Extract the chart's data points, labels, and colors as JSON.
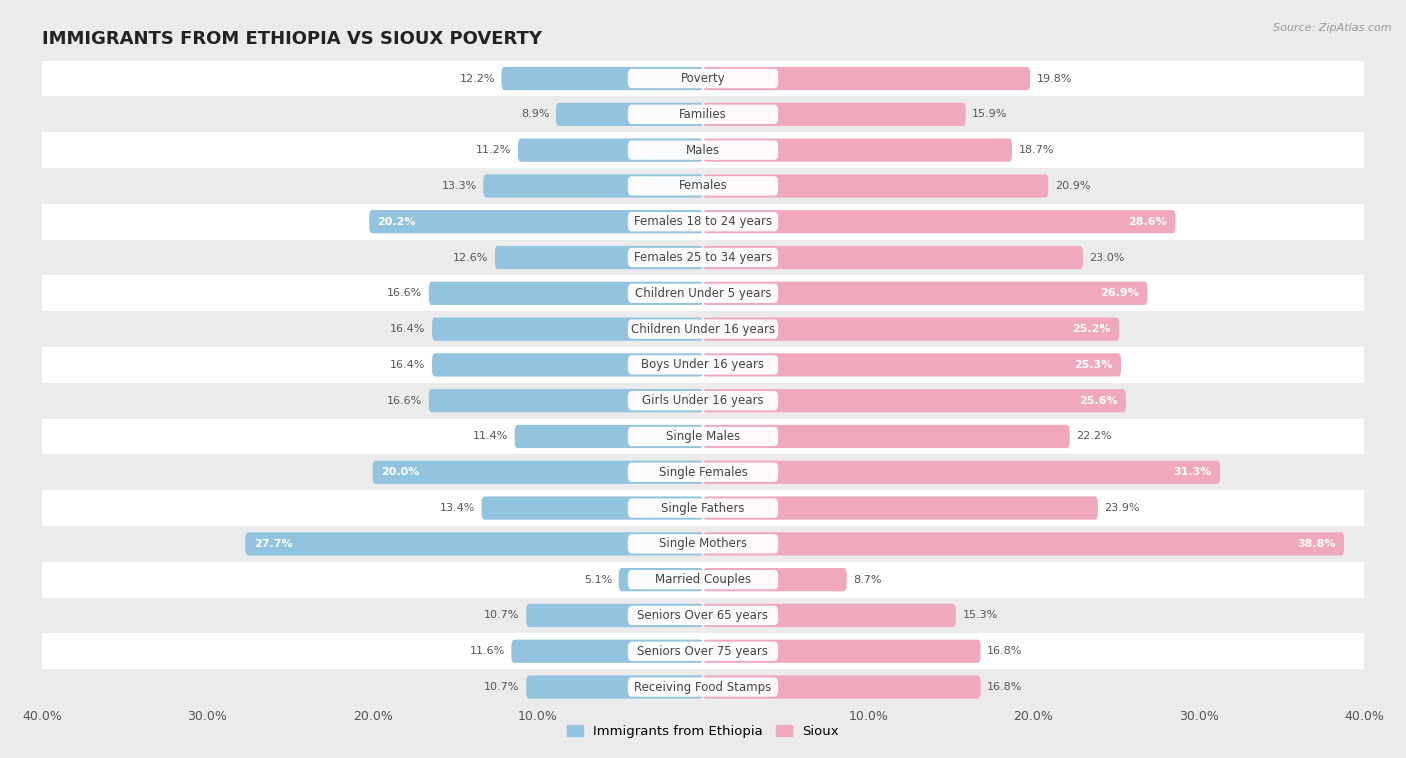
{
  "title": "IMMIGRANTS FROM ETHIOPIA VS SIOUX POVERTY",
  "source": "Source: ZipAtlas.com",
  "categories": [
    "Poverty",
    "Families",
    "Males",
    "Females",
    "Females 18 to 24 years",
    "Females 25 to 34 years",
    "Children Under 5 years",
    "Children Under 16 years",
    "Boys Under 16 years",
    "Girls Under 16 years",
    "Single Males",
    "Single Females",
    "Single Fathers",
    "Single Mothers",
    "Married Couples",
    "Seniors Over 65 years",
    "Seniors Over 75 years",
    "Receiving Food Stamps"
  ],
  "ethiopia_values": [
    12.2,
    8.9,
    11.2,
    13.3,
    20.2,
    12.6,
    16.6,
    16.4,
    16.4,
    16.6,
    11.4,
    20.0,
    13.4,
    27.7,
    5.1,
    10.7,
    11.6,
    10.7
  ],
  "sioux_values": [
    19.8,
    15.9,
    18.7,
    20.9,
    28.6,
    23.0,
    26.9,
    25.2,
    25.3,
    25.6,
    22.2,
    31.3,
    23.9,
    38.8,
    8.7,
    15.3,
    16.8,
    16.8
  ],
  "ethiopia_color": "#92C4E0",
  "sioux_color": "#F0A8BC",
  "ethiopia_label": "Immigrants from Ethiopia",
  "sioux_label": "Sioux",
  "background_color": "#EBEBEB",
  "row_color_even": "#FFFFFF",
  "row_color_odd": "#EBEBEB",
  "xlim": 40.0,
  "bar_height": 0.65,
  "title_fontsize": 13,
  "label_fontsize": 8.5,
  "value_fontsize": 8,
  "eth_white_threshold": 18.0,
  "sioux_white_threshold": 24.0
}
